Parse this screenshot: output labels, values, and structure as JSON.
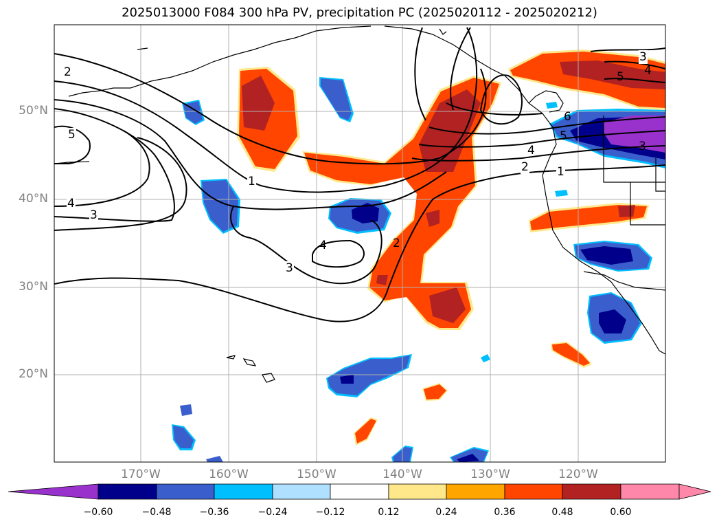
{
  "title": "2025013000 F084 300 hPa PV, precipitation PC (2025020112 - 2025020212)",
  "lat_labels": [
    "50°N",
    "40°N",
    "30°N",
    "20°N"
  ],
  "lon_labels": [
    "170°W",
    "160°W",
    "150°W",
    "140°W",
    "130°W",
    "120°W"
  ],
  "colorbar": {
    "ticks": [
      "−0.60",
      "−0.48",
      "−0.36",
      "−0.24",
      "−0.12",
      "0.12",
      "0.24",
      "0.36",
      "0.48",
      "0.60"
    ],
    "colors": [
      "#9932cc",
      "#00008b",
      "#3a5fcd",
      "#00bfff",
      "#b0e0ff",
      "#ffffff",
      "#ffe88a",
      "#ffa500",
      "#ff4500",
      "#b22222",
      "#ff88aa"
    ]
  },
  "contour_labels": [
    "1",
    "2",
    "3",
    "4",
    "5",
    "6",
    "1",
    "2",
    "3",
    "4",
    "5",
    "3",
    "4",
    "5",
    "3",
    "4",
    "1",
    "2",
    "3",
    "4",
    "5"
  ],
  "colors": {
    "grid": "#b0b0b0",
    "coast": "#000000",
    "contour": "#000000"
  }
}
